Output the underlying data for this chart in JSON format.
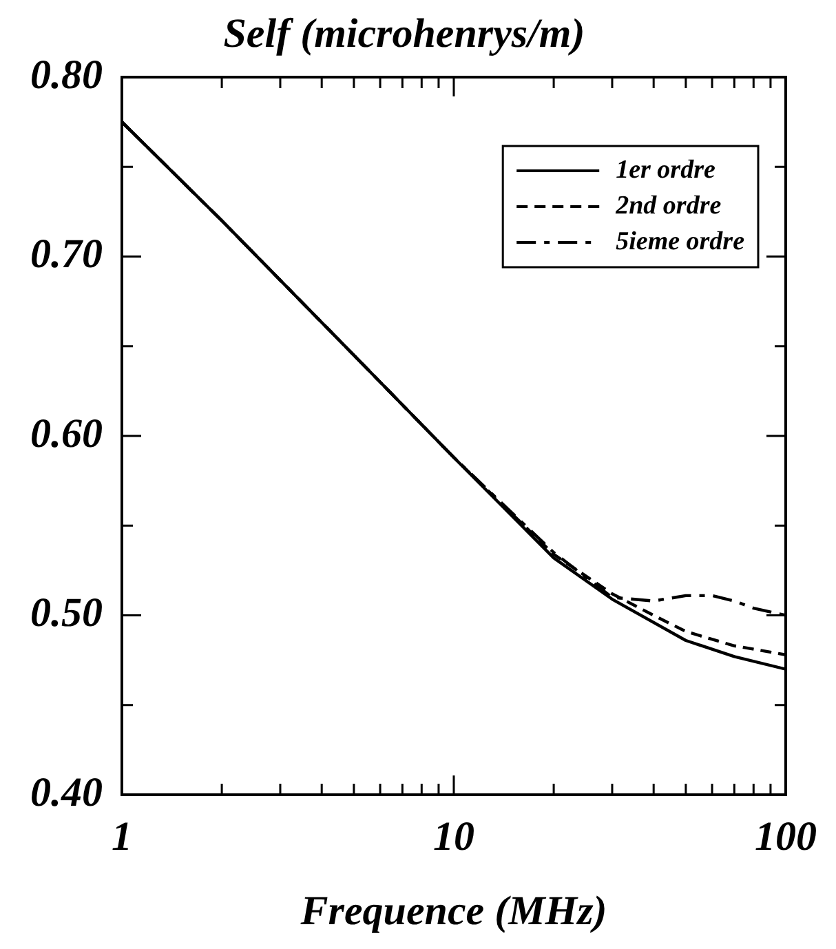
{
  "chart_data": {
    "type": "line",
    "title": "Self (microhenrys/m)",
    "xlabel": "Frequence (MHz)",
    "log": "x",
    "xlim": [
      1,
      100
    ],
    "ylim": [
      0.4,
      0.8
    ],
    "xticks": [
      1,
      {
        "value": 2,
        "label": null
      },
      {
        "value": 3,
        "label": null
      },
      {
        "value": 4,
        "label": null
      },
      {
        "value": 5,
        "label": null
      },
      {
        "value": 6,
        "label": null
      },
      {
        "value": 7,
        "label": null
      },
      {
        "value": 8,
        "label": null
      },
      {
        "value": 9,
        "label": null
      },
      10,
      {
        "value": 20,
        "label": null
      },
      {
        "value": 30,
        "label": null
      },
      {
        "value": 40,
        "label": null
      },
      {
        "value": 50,
        "label": null
      },
      {
        "value": 60,
        "label": null
      },
      {
        "value": 70,
        "label": null
      },
      {
        "value": 80,
        "label": null
      },
      {
        "value": 90,
        "label": null
      },
      100
    ],
    "yticks": [
      {
        "value": 0.4,
        "label": "0.40"
      },
      {
        "value": 0.45,
        "label": null
      },
      {
        "value": 0.5,
        "label": "0.50"
      },
      {
        "value": 0.55,
        "label": null
      },
      {
        "value": 0.6,
        "label": "0.60"
      },
      {
        "value": 0.65,
        "label": null
      },
      {
        "value": 0.7,
        "label": "0.70"
      },
      {
        "value": 0.75,
        "label": null
      },
      {
        "value": 0.8,
        "label": "0.80"
      }
    ],
    "grid": false,
    "legend": "top right",
    "marker": "none",
    "series": [
      {
        "name": "1er ordre",
        "color": "#000000",
        "line_style": "solid",
        "x": [
          1,
          2,
          5,
          10,
          20,
          30,
          50,
          70,
          100
        ],
        "values": [
          0.775,
          0.72,
          0.645,
          0.588,
          0.532,
          0.509,
          0.486,
          0.477,
          0.47
        ]
      },
      {
        "name": "2nd ordre",
        "color": "#000000",
        "line_style": "dashed",
        "x": [
          1,
          2,
          5,
          10,
          20,
          30,
          40,
          50,
          70,
          100
        ],
        "values": [
          0.775,
          0.72,
          0.645,
          0.588,
          0.534,
          0.512,
          0.5,
          0.491,
          0.483,
          0.478
        ]
      },
      {
        "name": "5ieme ordre",
        "color": "#000000",
        "line_style": "dashdot",
        "x": [
          1,
          2,
          5,
          10,
          20,
          30,
          40,
          50,
          60,
          70,
          80,
          100
        ],
        "values": [
          0.775,
          0.72,
          0.645,
          0.588,
          0.535,
          0.51,
          0.508,
          0.511,
          0.511,
          0.508,
          0.504,
          0.5
        ]
      }
    ]
  }
}
